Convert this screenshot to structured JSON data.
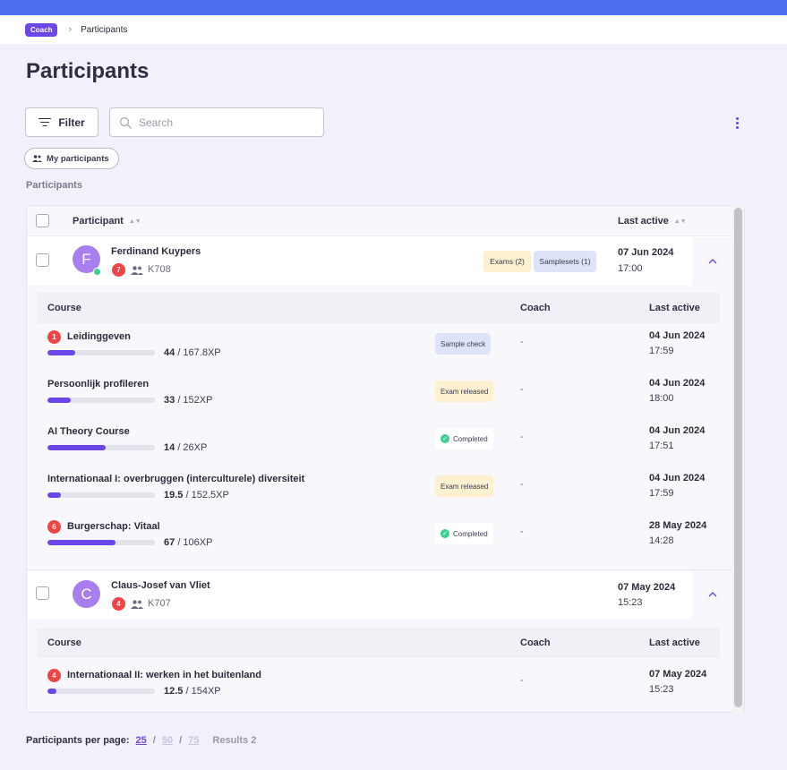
{
  "breadcrumb": {
    "badge": "Coach",
    "separator": "›",
    "current": "Participants"
  },
  "page": {
    "title": "Participants"
  },
  "toolbar": {
    "filter_label": "Filter",
    "search_placeholder": "Search",
    "my_participants_label": "My participants"
  },
  "section_label": "Participants",
  "table": {
    "headers": {
      "participant": "Participant",
      "last_active": "Last active"
    },
    "participants": [
      {
        "initial": "F",
        "name": "Ferdinand Kuypers",
        "badge": "7",
        "code": "K708",
        "tags": [
          "Exams (2)",
          "Samplesets (1)"
        ],
        "date": "07 Jun 2024",
        "time": "17:00",
        "online": true,
        "course_headers": {
          "course": "Course",
          "coach": "Coach",
          "last_active": "Last active"
        },
        "courses": [
          {
            "badge": "1",
            "name": "Leidinggeven",
            "xp_current": "44",
            "xp_total": "/ 167.8XP",
            "progress": 0.262,
            "status": "Sample check",
            "status_type": "blue",
            "coach": "-",
            "date": "04 Jun 2024",
            "time": "17:59"
          },
          {
            "badge": "",
            "name": "Persoonlijk profileren",
            "xp_current": "33",
            "xp_total": "/ 152XP",
            "progress": 0.217,
            "status": "Exam released",
            "status_type": "yellow",
            "coach": "-",
            "date": "04 Jun 2024",
            "time": "18:00"
          },
          {
            "badge": "",
            "name": "AI Theory Course",
            "xp_current": "14",
            "xp_total": "/ 26XP",
            "progress": 0.538,
            "status": "Completed",
            "status_type": "white",
            "coach": "-",
            "date": "04 Jun 2024",
            "time": "17:51"
          },
          {
            "badge": "",
            "name": "Internationaal I: overbruggen (interculturele) diversiteit",
            "xp_current": "19.5",
            "xp_total": "/ 152.5XP",
            "progress": 0.128,
            "status": "Exam released",
            "status_type": "yellow",
            "coach": "-",
            "date": "04 Jun 2024",
            "time": "17:59"
          },
          {
            "badge": "6",
            "name": "Burgerschap: Vitaal",
            "xp_current": "67",
            "xp_total": "/ 106XP",
            "progress": 0.632,
            "status": "Completed",
            "status_type": "white",
            "coach": "-",
            "date": "28 May 2024",
            "time": "14:28"
          }
        ]
      },
      {
        "initial": "C",
        "name": "Claus-Josef van Vliet",
        "badge": "4",
        "code": "K707",
        "tags": [],
        "date": "07 May 2024",
        "time": "15:23",
        "online": false,
        "course_headers": {
          "course": "Course",
          "coach": "Coach",
          "last_active": "Last active"
        },
        "courses": [
          {
            "badge": "4",
            "name": "Internationaal II: werken in het buitenland",
            "xp_current": "12.5",
            "xp_total": "/ 154XP",
            "progress": 0.081,
            "status": "",
            "status_type": "",
            "coach": "-",
            "date": "07 May 2024",
            "time": "15:23"
          }
        ]
      }
    ]
  },
  "pagination": {
    "label": "Participants per page:",
    "options": [
      "25",
      "50",
      "75"
    ],
    "selected": "25",
    "results": "Results 2"
  },
  "colors": {
    "accent": "#6b46e8",
    "topbar": "#4f6ef0",
    "badge_red": "#ef4444",
    "online_green": "#3ccf8e"
  }
}
